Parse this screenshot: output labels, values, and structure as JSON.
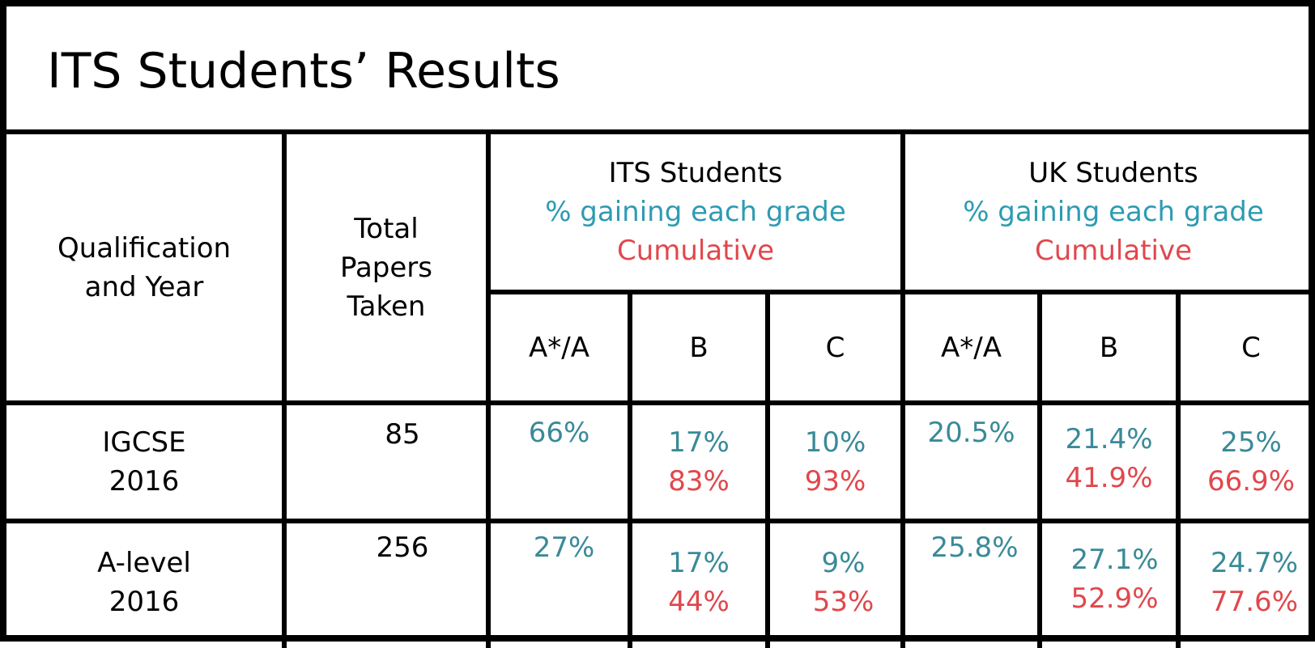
{
  "title": "ITS Students’ Results",
  "header": {
    "qualification": [
      "Qualification",
      "and Year"
    ],
    "total_papers": [
      "Total",
      "Papers",
      "Taken"
    ],
    "its_group": {
      "name": "ITS Students",
      "sub": "% gaining each grade",
      "cumulative": "Cumulative"
    },
    "uk_group": {
      "name": "UK Students",
      "sub": "% gaining each grade",
      "cumulative": "Cumulative"
    },
    "grades": [
      "A*/A",
      "B",
      "C",
      "A*/A",
      "B",
      "C"
    ]
  },
  "rows": [
    {
      "qualification": [
        "IGCSE",
        "2016"
      ],
      "total": "85",
      "its": {
        "a": "66%",
        "b": "17%",
        "b_cum": "83%",
        "c": "10%",
        "c_cum": "93%"
      },
      "uk": {
        "a": "20.5%",
        "b": "21.4%",
        "b_cum": "41.9%",
        "c": "25%",
        "c_cum": "66.9%"
      }
    },
    {
      "qualification": [
        "A-level",
        "2016"
      ],
      "total": "256",
      "its": {
        "a": "27%",
        "b": "17%",
        "b_cum": "44%",
        "c": "9%",
        "c_cum": "53%"
      },
      "uk": {
        "a": "25.8%",
        "b": "27.1%",
        "b_cum": "52.9%",
        "c": "24.7%",
        "c_cum": "77.6%"
      }
    }
  ],
  "colors": {
    "per_grade": "#3a8a98",
    "header_sub": "#2e9bb2",
    "cumulative": "#e1474c",
    "grid": "#000000"
  }
}
